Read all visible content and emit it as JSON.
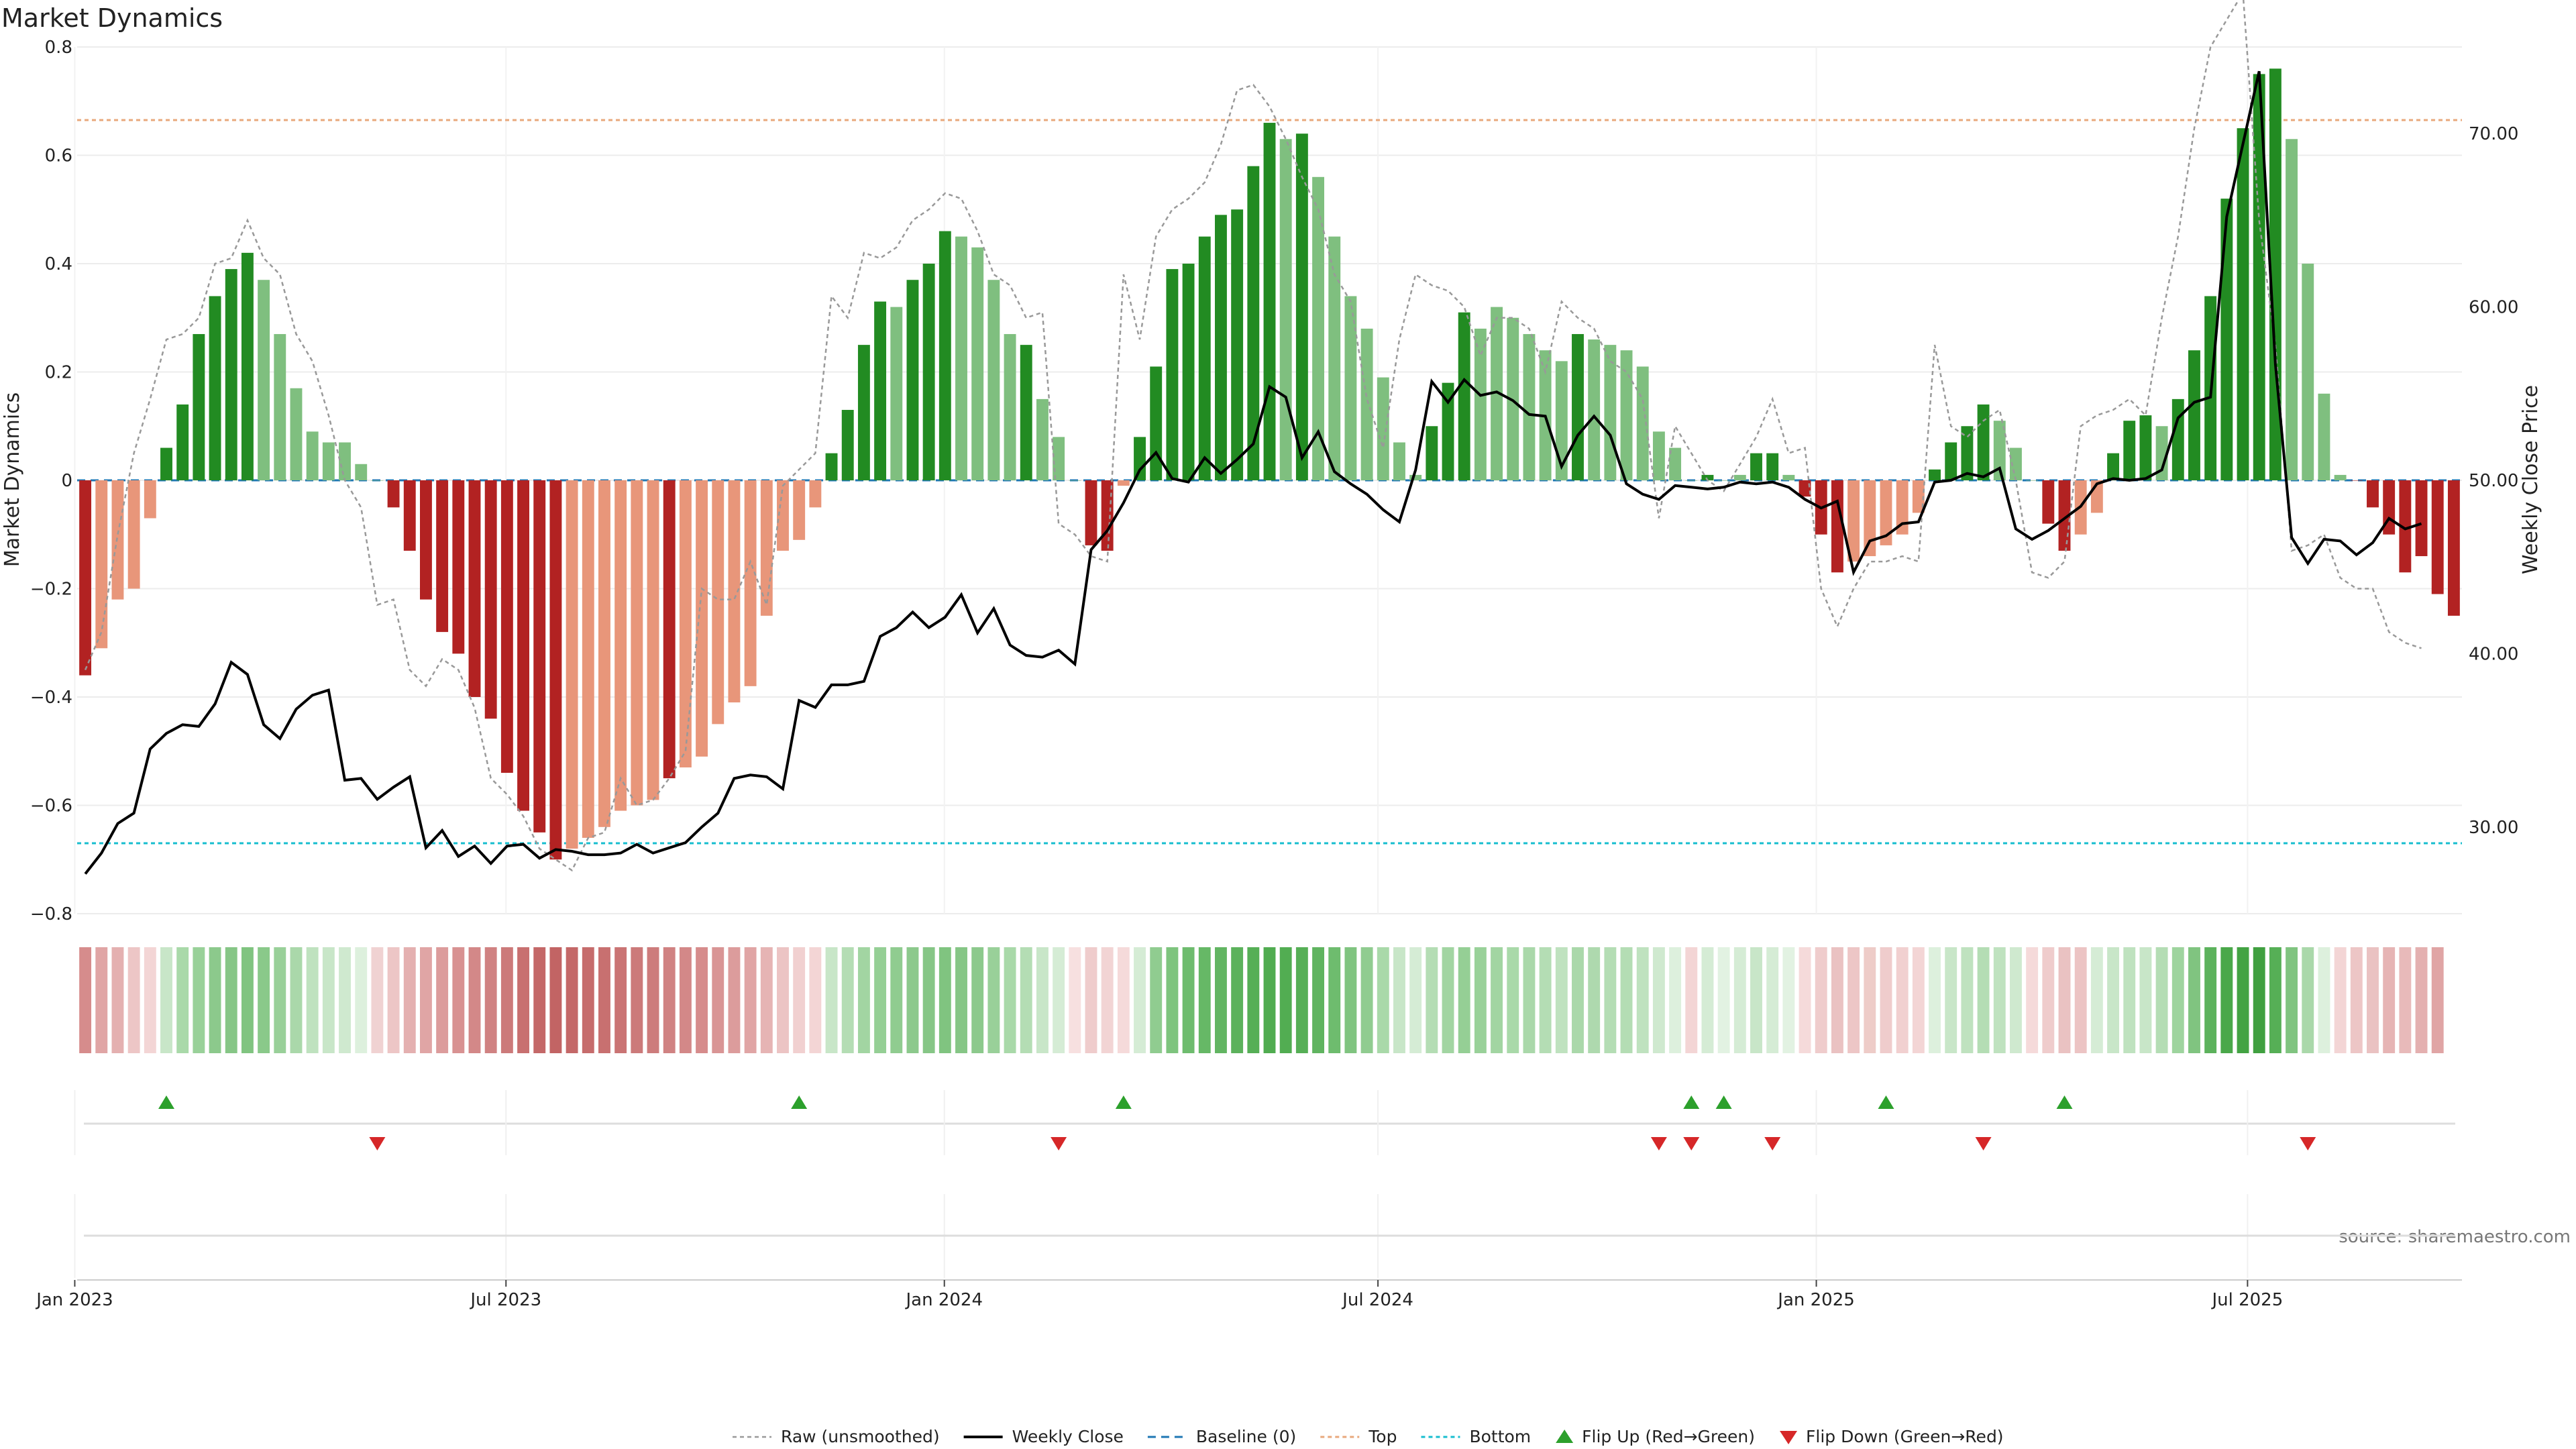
{
  "chart_data": {
    "type": "bar",
    "title": "Market Dynamics",
    "ylabel": "Market Dynamics",
    "y2label": "Weekly Close Price",
    "ylim": [
      -0.8,
      0.8
    ],
    "y2lim": [
      25,
      75
    ],
    "yticks": [
      "0.8",
      "0.6",
      "0.4",
      "0.2",
      "0",
      "−0.2",
      "−0.4",
      "−0.6",
      "−0.8"
    ],
    "y2ticks": [
      "70.00",
      "60.00",
      "50.00",
      "40.00",
      "30.00"
    ],
    "x_ticks": [
      "Jan 2023",
      "Jul 2023",
      "Jan 2024",
      "Jul 2024",
      "Jan 2025",
      "Jul 2025"
    ],
    "x_start": "2023-01-02",
    "x_end": "2025-09-29",
    "top_level": 0.665,
    "bottom_level": -0.67,
    "grid": true,
    "legend_position": "bottom-center",
    "source": "source: sharemaestro.com",
    "colors": {
      "strong_green": "#228B22",
      "light_green": "#7fbf7f",
      "strong_red": "#b22222",
      "light_red": "#e8967a",
      "close": "#000000",
      "raw": "#999999",
      "baseline": "#1f77b4",
      "top": "#e8a87c",
      "bottom": "#17becf",
      "flip_up": "#2ca02c",
      "flip_down": "#d62728"
    },
    "series": [
      {
        "name": "Market Dynamics",
        "values": [
          -0.36,
          -0.31,
          -0.22,
          -0.2,
          -0.07,
          0.06,
          0.14,
          0.27,
          0.34,
          0.39,
          0.42,
          0.37,
          0.27,
          0.17,
          0.09,
          0.07,
          0.07,
          0.03,
          0.0,
          -0.05,
          -0.13,
          -0.22,
          -0.28,
          -0.32,
          -0.4,
          -0.44,
          -0.54,
          -0.61,
          -0.65,
          -0.7,
          -0.68,
          -0.66,
          -0.64,
          -0.61,
          -0.6,
          -0.59,
          -0.55,
          -0.53,
          -0.51,
          -0.45,
          -0.41,
          -0.38,
          -0.25,
          -0.13,
          -0.11,
          -0.05,
          0.05,
          0.13,
          0.25,
          0.33,
          0.32,
          0.37,
          0.4,
          0.46,
          0.45,
          0.43,
          0.37,
          0.27,
          0.25,
          0.15,
          0.08,
          0.0,
          -0.12,
          -0.13,
          -0.01,
          0.08,
          0.21,
          0.39,
          0.4,
          0.45,
          0.49,
          0.5,
          0.58,
          0.66,
          0.63,
          0.64,
          0.56,
          0.45,
          0.34,
          0.28,
          0.19,
          0.07,
          0.01,
          0.1,
          0.18,
          0.31,
          0.28,
          0.32,
          0.3,
          0.27,
          0.24,
          0.22,
          0.27,
          0.26,
          0.25,
          0.24,
          0.21,
          0.09,
          0.06,
          0.0,
          0.01,
          0.0,
          0.01,
          0.05,
          0.05,
          0.01,
          -0.03,
          -0.1,
          -0.17,
          -0.15,
          -0.14,
          -0.12,
          -0.1,
          -0.06,
          0.02,
          0.07,
          0.1,
          0.14,
          0.11,
          0.06,
          0.0,
          -0.08,
          -0.13,
          -0.1,
          -0.06,
          0.05,
          0.11,
          0.12,
          0.1,
          0.15,
          0.24,
          0.34,
          0.52,
          0.65,
          0.75,
          0.76,
          0.63,
          0.4,
          0.16,
          0.01,
          0.0,
          -0.05,
          -0.1,
          -0.17,
          -0.14,
          -0.21,
          -0.25
        ],
        "colors": [
          "sr",
          "lr",
          "lr",
          "lr",
          "lr",
          "sg",
          "sg",
          "sg",
          "sg",
          "sg",
          "sg",
          "lg",
          "lg",
          "lg",
          "lg",
          "lg",
          "lg",
          "lg",
          "lg",
          "sr",
          "sr",
          "sr",
          "sr",
          "sr",
          "sr",
          "sr",
          "sr",
          "sr",
          "sr",
          "sr",
          "lr",
          "lr",
          "lr",
          "lr",
          "lr",
          "lr",
          "sr",
          "lr",
          "lr",
          "lr",
          "lr",
          "lr",
          "lr",
          "lr",
          "lr",
          "lr",
          "sg",
          "sg",
          "sg",
          "sg",
          "lg",
          "sg",
          "sg",
          "sg",
          "lg",
          "lg",
          "lg",
          "lg",
          "sg",
          "lg",
          "lg",
          "lg",
          "sr",
          "sr",
          "lr",
          "sg",
          "sg",
          "sg",
          "sg",
          "sg",
          "sg",
          "sg",
          "sg",
          "sg",
          "lg",
          "sg",
          "lg",
          "lg",
          "lg",
          "lg",
          "lg",
          "lg",
          "lg",
          "sg",
          "sg",
          "sg",
          "lg",
          "lg",
          "lg",
          "lg",
          "lg",
          "lg",
          "sg",
          "lg",
          "lg",
          "lg",
          "lg",
          "lg",
          "lg",
          "lg",
          "sg",
          "lg",
          "lg",
          "sg",
          "sg",
          "lg",
          "sr",
          "sr",
          "sr",
          "lr",
          "lr",
          "lr",
          "lr",
          "lr",
          "sg",
          "sg",
          "sg",
          "sg",
          "lg",
          "lg",
          "lg",
          "sr",
          "sr",
          "lr",
          "lr",
          "sg",
          "sg",
          "sg",
          "lg",
          "sg",
          "sg",
          "sg",
          "sg",
          "sg",
          "sg",
          "sg",
          "lg",
          "lg",
          "lg",
          "lg",
          "sr",
          "sr",
          "sr",
          "sr",
          "sr",
          "sr",
          "sr"
        ]
      },
      {
        "name": "Raw (unsmoothed)",
        "values": [
          -0.35,
          -0.28,
          -0.1,
          0.05,
          0.15,
          0.26,
          0.27,
          0.3,
          0.4,
          0.41,
          0.48,
          0.41,
          0.38,
          0.27,
          0.22,
          0.12,
          0.0,
          -0.05,
          -0.23,
          -0.22,
          -0.35,
          -0.38,
          -0.33,
          -0.35,
          -0.42,
          -0.55,
          -0.58,
          -0.62,
          -0.68,
          -0.7,
          -0.72,
          -0.66,
          -0.65,
          -0.55,
          -0.6,
          -0.59,
          -0.55,
          -0.5,
          -0.2,
          -0.22,
          -0.22,
          -0.15,
          -0.23,
          -0.01,
          0.02,
          0.05,
          0.34,
          0.3,
          0.42,
          0.41,
          0.43,
          0.48,
          0.5,
          0.53,
          0.52,
          0.46,
          0.38,
          0.36,
          0.3,
          0.31,
          -0.08,
          -0.1,
          -0.14,
          -0.15,
          0.38,
          0.26,
          0.45,
          0.5,
          0.52,
          0.55,
          0.62,
          0.72,
          0.73,
          0.69,
          0.63,
          0.56,
          0.5,
          0.38,
          0.33,
          0.15,
          0.06,
          0.26,
          0.38,
          0.36,
          0.35,
          0.32,
          0.23,
          0.3,
          0.3,
          0.28,
          0.2,
          0.33,
          0.3,
          0.28,
          0.22,
          0.2,
          0.15,
          -0.07,
          0.1,
          0.05,
          0.0,
          -0.02,
          0.03,
          0.08,
          0.15,
          0.05,
          0.06,
          -0.2,
          -0.27,
          -0.2,
          -0.15,
          -0.15,
          -0.14,
          -0.15,
          0.25,
          0.1,
          0.08,
          0.11,
          0.13,
          0.0,
          -0.17,
          -0.18,
          -0.15,
          0.1,
          0.12,
          0.13,
          0.15,
          0.12,
          0.3,
          0.45,
          0.65,
          0.8,
          0.85,
          0.9,
          0.48,
          0.25,
          -0.13,
          -0.12,
          -0.1,
          -0.18,
          -0.2,
          -0.2,
          -0.28,
          -0.3,
          -0.31
        ]
      },
      {
        "name": "Weekly Close",
        "values": [
          27.3,
          28.5,
          30.2,
          30.8,
          34.5,
          35.4,
          35.9,
          35.8,
          37.1,
          39.5,
          38.8,
          35.9,
          35.1,
          36.8,
          37.6,
          37.9,
          32.7,
          32.8,
          31.6,
          32.3,
          32.9,
          28.8,
          29.8,
          28.3,
          28.9,
          27.9,
          28.9,
          29.0,
          28.2,
          28.7,
          28.6,
          28.4,
          28.4,
          28.5,
          29.0,
          28.5,
          28.8,
          29.1,
          30.0,
          30.8,
          32.8,
          33.0,
          32.9,
          32.2,
          37.3,
          36.9,
          38.2,
          38.2,
          38.4,
          41.0,
          41.5,
          42.4,
          41.5,
          42.1,
          43.4,
          41.2,
          42.6,
          40.5,
          39.9,
          39.8,
          40.2,
          39.4,
          46.0,
          47.1,
          48.7,
          50.6,
          51.6,
          50.1,
          49.9,
          51.3,
          50.4,
          51.2,
          52.1,
          55.4,
          54.8,
          51.3,
          52.8,
          50.5,
          49.8,
          49.2,
          48.3,
          47.6,
          50.6,
          55.7,
          54.5,
          55.8,
          54.9,
          55.1,
          54.6,
          53.8,
          53.7,
          50.8,
          52.6,
          53.7,
          52.6,
          49.8,
          49.2,
          48.9,
          49.7,
          49.6,
          49.5,
          49.6,
          49.9,
          49.8,
          49.9,
          49.6,
          48.9,
          48.4,
          48.8,
          44.7,
          46.5,
          46.8,
          47.5,
          47.6,
          49.9,
          50.0,
          50.4,
          50.2,
          50.7,
          47.2,
          46.6,
          47.1,
          47.8,
          48.5,
          49.8,
          50.1,
          50.0,
          50.1,
          50.6,
          53.6,
          54.5,
          54.8,
          65.2,
          69.4,
          73.6,
          56.7,
          46.7,
          45.2,
          46.6,
          46.5,
          45.7,
          46.4,
          47.8,
          47.2,
          47.5
        ]
      }
    ],
    "heat_strip": {
      "colors": [
        "#d68c8c",
        "#e0a5a5",
        "#e4b0b0",
        "#edc6c6",
        "#f3d5d5",
        "#c8e6c8",
        "#a9d9a9",
        "#99d199",
        "#8cc98c",
        "#86c686",
        "#80c480",
        "#8ac98a",
        "#99d099",
        "#aad8aa",
        "#bfe2bf",
        "#c8e6c8",
        "#cfe9cf",
        "#ddf0dd",
        "#f0d2d2",
        "#edc6c6",
        "#e4b0b0",
        "#e0a5a5",
        "#dc9c9c",
        "#d89292",
        "#d38888",
        "#d08282",
        "#cc7a7a",
        "#c87070",
        "#c46868",
        "#c26464",
        "#c46868",
        "#c66c6c",
        "#c87070",
        "#ca7474",
        "#cc7a7a",
        "#cd7c7c",
        "#d08282",
        "#d38888",
        "#d68c8c",
        "#d99595",
        "#dc9c9c",
        "#e0a5a5",
        "#e6b4b4",
        "#ecc4c4",
        "#f1d0d0",
        "#f3d5d5",
        "#c8e6c8",
        "#b4ddb4",
        "#a2d5a2",
        "#95cf95",
        "#90cc90",
        "#8cc98c",
        "#86c686",
        "#80c480",
        "#86c686",
        "#8cc98c",
        "#99d099",
        "#a9d9a9",
        "#b4ddb4",
        "#c8e6c8",
        "#d5ecd5",
        "#f7e0e0",
        "#efcccc",
        "#f2d4d4",
        "#f5dada",
        "#d5ecd5",
        "#90cc90",
        "#7ec47e",
        "#6ebc6e",
        "#66b866",
        "#62b562",
        "#5cb25c",
        "#56af56",
        "#50ac50",
        "#52ad52",
        "#56af56",
        "#60b460",
        "#6ebc6e",
        "#80c480",
        "#90cc90",
        "#a9d9a9",
        "#c8e6c8",
        "#d5ecd5",
        "#b4ddb4",
        "#a2d5a2",
        "#95cf95",
        "#99d199",
        "#a2d5a2",
        "#a9d9a9",
        "#aad8aa",
        "#b4ddb4",
        "#bfe2bf",
        "#aad8aa",
        "#aed9ae",
        "#b4ddb4",
        "#b4ddb4",
        "#bfe2bf",
        "#cfe9cf",
        "#ddf0dd",
        "#f3d5d5",
        "#d5ecd5",
        "#e2f2e2",
        "#d5ecd5",
        "#c8e6c8",
        "#d5ecd5",
        "#e2f2e2",
        "#f5dada",
        "#efcccc",
        "#eac2c2",
        "#edc6c6",
        "#eeccc8",
        "#efcccc",
        "#f1d0d0",
        "#f3d5d5",
        "#ddf0dd",
        "#c8e6c8",
        "#bfe2bf",
        "#b4ddb4",
        "#bfe2bf",
        "#cfe9cf",
        "#f5dada",
        "#efcccc",
        "#eac2c2",
        "#ecc4c4",
        "#d5ecd5",
        "#c8e6c8",
        "#bfe2bf",
        "#c8e6c8",
        "#b4ddb4",
        "#9ed49e",
        "#80c480",
        "#5cb25c",
        "#4aa84a",
        "#43a343",
        "#40a040",
        "#56af56",
        "#80c480",
        "#aad8aa",
        "#ddf0dd",
        "#f3d5d5",
        "#edc6c6",
        "#eac2c2",
        "#e6b4b4",
        "#e8baba",
        "#e4b0b0",
        "#e0a5a5"
      ]
    },
    "flip_up_indices": [
      5,
      44,
      64,
      99,
      101,
      111,
      122
    ],
    "flip_down_indices": [
      18,
      60,
      97,
      99,
      104,
      117,
      137
    ],
    "legend": [
      {
        "label": "Raw (unsmoothed)",
        "style": "raw"
      },
      {
        "label": "Weekly Close",
        "style": "close"
      },
      {
        "label": "Baseline (0)",
        "style": "baseline"
      },
      {
        "label": "Top",
        "style": "top"
      },
      {
        "label": "Bottom",
        "style": "bottom"
      },
      {
        "label": "Flip Up (Red→Green)",
        "style": "flip_up"
      },
      {
        "label": "Flip Down (Green→Red)",
        "style": "flip_down"
      }
    ]
  }
}
